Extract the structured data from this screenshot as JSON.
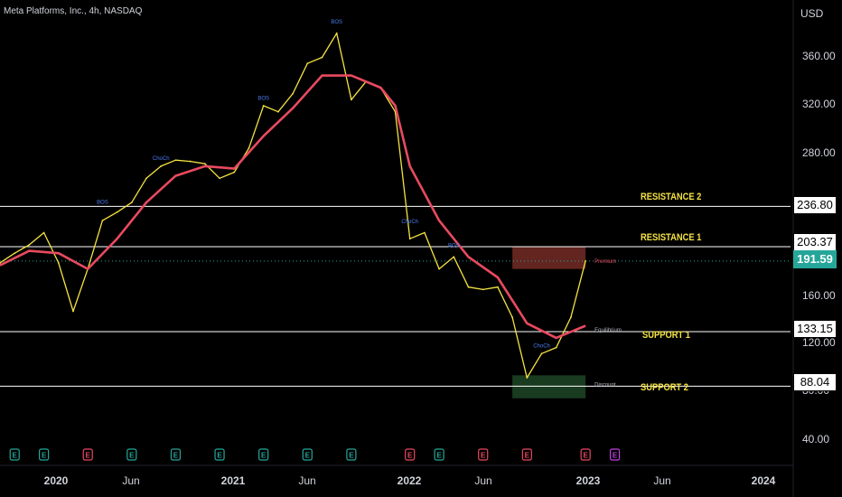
{
  "header": {
    "symbol_line": "Meta Platforms, Inc., 4h, NASDAQ"
  },
  "axis": {
    "currency": "USD",
    "y_ticks": [
      "360.00",
      "320.00",
      "280.00",
      "160.00",
      "120.00",
      "80.00",
      "40.00"
    ],
    "x_ticks": [
      {
        "label": "2020",
        "major": true
      },
      {
        "label": "Jun",
        "major": false
      },
      {
        "label": "2021",
        "major": true
      },
      {
        "label": "Jun",
        "major": false
      },
      {
        "label": "2022",
        "major": true
      },
      {
        "label": "Jun",
        "major": false
      },
      {
        "label": "2023",
        "major": true
      },
      {
        "label": "Jun",
        "major": false
      },
      {
        "label": "2024",
        "major": true
      }
    ]
  },
  "levels": [
    {
      "name": "RESISTANCE 2",
      "value": "236.80"
    },
    {
      "name": "RESISTANCE 1",
      "value": "203.37"
    },
    {
      "name": "SUPPORT 1",
      "value": "133.15"
    },
    {
      "name": "SUPPORT 2",
      "value": "88.04"
    }
  ],
  "current_price": "191.59",
  "zone_labels": {
    "premium": "Premium",
    "equilibrium": "Equilibrium",
    "discount": "Discount"
  },
  "structure_tags": [
    "BOS",
    "ChoCh"
  ],
  "earnings_marker": "E",
  "colors": {
    "background": "#000000",
    "price": "#f5e342",
    "ema_fast": "#26a69a",
    "ema_slow": "#e84a5f",
    "level_line": "#ffffff",
    "current": "#26a69a",
    "label": "#f5e342"
  },
  "chart_data": {
    "type": "line",
    "title": "Meta Platforms, Inc., 4h, NASDAQ",
    "ylabel": "USD",
    "ylim": [
      30,
      400
    ],
    "x_range": [
      "2019-10",
      "2024-04"
    ],
    "series": [
      {
        "values": [
          [
            "2019-10",
            190
          ],
          [
            "2019-11",
            198
          ],
          [
            "2019-12",
            205
          ],
          [
            "2020-01",
            215
          ],
          [
            "2020-02",
            190
          ],
          [
            "2020-03",
            150
          ],
          [
            "2020-04",
            185
          ],
          [
            "2020-05",
            225
          ],
          [
            "2020-06",
            232
          ],
          [
            "2020-07",
            240
          ],
          [
            "2020-08",
            260
          ],
          [
            "2020-09",
            270
          ],
          [
            "2020-10",
            275
          ],
          [
            "2020-11",
            274
          ],
          [
            "2020-12",
            272
          ],
          [
            "2021-01",
            260
          ],
          [
            "2021-02",
            265
          ],
          [
            "2021-03",
            285
          ],
          [
            "2021-04",
            320
          ],
          [
            "2021-05",
            315
          ],
          [
            "2021-06",
            330
          ],
          [
            "2021-07",
            355
          ],
          [
            "2021-08",
            360
          ],
          [
            "2021-09",
            380
          ],
          [
            "2021-10",
            325
          ],
          [
            "2021-11",
            340
          ],
          [
            "2021-12",
            335
          ],
          [
            "2022-01",
            315
          ],
          [
            "2022-02",
            210
          ],
          [
            "2022-03",
            215
          ],
          [
            "2022-04",
            185
          ],
          [
            "2022-05",
            195
          ],
          [
            "2022-06",
            170
          ],
          [
            "2022-07",
            168
          ],
          [
            "2022-08",
            170
          ],
          [
            "2022-09",
            145
          ],
          [
            "2022-10",
            95
          ],
          [
            "2022-11",
            115
          ],
          [
            "2022-12",
            120
          ],
          [
            "2023-01",
            145
          ],
          [
            "2023-02",
            191.59
          ]
        ]
      },
      {
        "values": [
          [
            "2019-10",
            188
          ],
          [
            "2019-12",
            200
          ],
          [
            "2020-02",
            198
          ],
          [
            "2020-04",
            185
          ],
          [
            "2020-06",
            210
          ],
          [
            "2020-08",
            240
          ],
          [
            "2020-10",
            262
          ],
          [
            "2020-12",
            270
          ],
          [
            "2021-02",
            268
          ],
          [
            "2021-04",
            295
          ],
          [
            "2021-06",
            318
          ],
          [
            "2021-08",
            345
          ],
          [
            "2021-10",
            345
          ],
          [
            "2021-12",
            335
          ],
          [
            "2022-01",
            320
          ],
          [
            "2022-02",
            270
          ],
          [
            "2022-04",
            225
          ],
          [
            "2022-06",
            195
          ],
          [
            "2022-08",
            178
          ],
          [
            "2022-10",
            140
          ],
          [
            "2022-12",
            128
          ],
          [
            "2023-02",
            138
          ]
        ]
      }
    ]
  }
}
